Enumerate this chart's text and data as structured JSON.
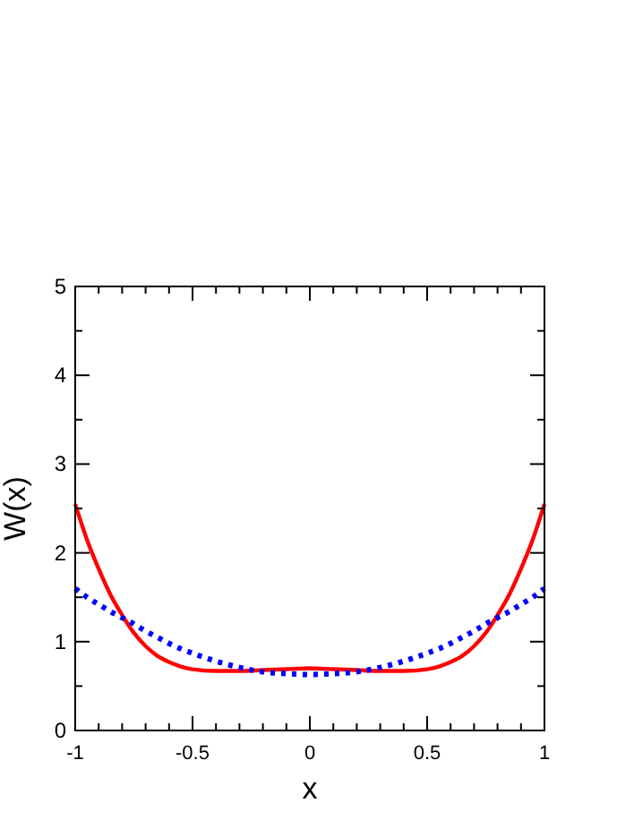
{
  "chart_data": {
    "type": "line",
    "xlabel": "x",
    "ylabel": "W(x)",
    "xlim": [
      -1,
      1
    ],
    "ylim": [
      0,
      5
    ],
    "xticks": [
      -1,
      {
        "value": -0.9,
        "label": null
      },
      {
        "value": -0.8,
        "label": null
      },
      {
        "value": -0.7,
        "label": null
      },
      {
        "value": -0.6,
        "label": null
      },
      -0.5,
      {
        "value": -0.4,
        "label": null
      },
      {
        "value": -0.3,
        "label": null
      },
      {
        "value": -0.2,
        "label": null
      },
      {
        "value": -0.1,
        "label": null
      },
      0,
      {
        "value": 0.1,
        "label": null
      },
      {
        "value": 0.2,
        "label": null
      },
      {
        "value": 0.3,
        "label": null
      },
      {
        "value": 0.4,
        "label": null
      },
      0.5,
      {
        "value": 0.6,
        "label": null
      },
      {
        "value": 0.7,
        "label": null
      },
      {
        "value": 0.8,
        "label": null
      },
      {
        "value": 0.9,
        "label": null
      },
      1
    ],
    "yticks": [
      0,
      {
        "value": 0.5,
        "label": null
      },
      1,
      {
        "value": 1.5,
        "label": null
      },
      2,
      {
        "value": 2.5,
        "label": null
      },
      3,
      {
        "value": 3.5,
        "label": null
      },
      4,
      {
        "value": 4.5,
        "label": null
      },
      5
    ],
    "x": [
      -1,
      -0.95,
      -0.9,
      -0.85,
      -0.8,
      -0.75,
      -0.7,
      -0.65,
      -0.6,
      -0.55,
      -0.5,
      -0.4,
      -0.3,
      -0.2,
      -0.1,
      0,
      0.1,
      0.2,
      0.3,
      0.4,
      0.5,
      0.55,
      0.6,
      0.65,
      0.7,
      0.75,
      0.8,
      0.85,
      0.9,
      0.95,
      1
    ],
    "series": [
      {
        "color": "#ff0000",
        "line_style": "solid",
        "values": [
          2.55,
          2.15,
          1.82,
          1.53,
          1.3,
          1.1,
          0.95,
          0.84,
          0.77,
          0.72,
          0.69,
          0.67,
          0.67,
          0.68,
          0.69,
          0.7,
          0.69,
          0.68,
          0.67,
          0.67,
          0.69,
          0.72,
          0.77,
          0.84,
          0.95,
          1.1,
          1.3,
          1.53,
          1.82,
          2.15,
          2.55
        ]
      },
      {
        "color": "#0000ff",
        "line_style": "dotted",
        "values": [
          1.6,
          1.5,
          1.42,
          1.34,
          1.27,
          1.2,
          1.12,
          1.05,
          0.98,
          0.92,
          0.87,
          0.78,
          0.71,
          0.66,
          0.64,
          0.63,
          0.64,
          0.66,
          0.71,
          0.78,
          0.87,
          0.92,
          0.98,
          1.05,
          1.12,
          1.2,
          1.27,
          1.34,
          1.42,
          1.5,
          1.6
        ]
      }
    ]
  }
}
